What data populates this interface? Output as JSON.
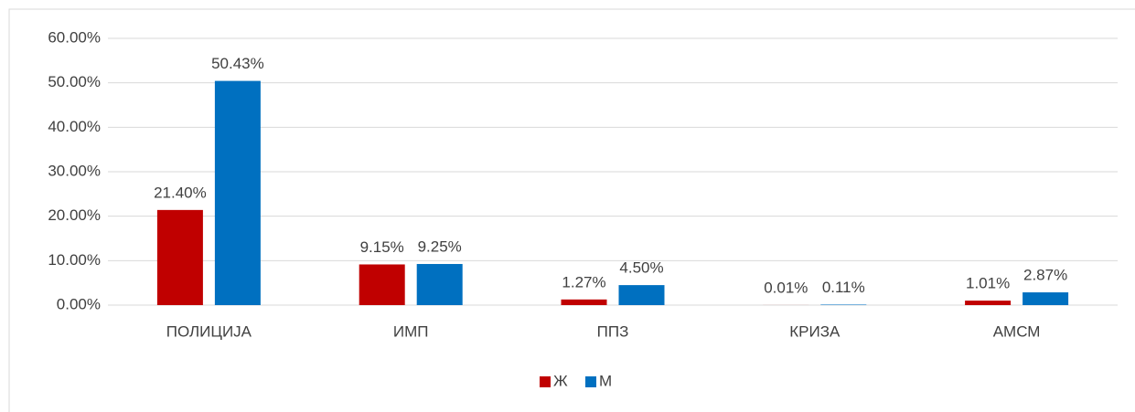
{
  "chart_data": {
    "type": "bar",
    "categories": [
      "ПОЛИЦИЈА",
      "ИМП",
      "ППЗ",
      "КРИЗА",
      "АМСМ"
    ],
    "series": [
      {
        "name": "Ж",
        "color": "#c00000",
        "values": [
          21.4,
          9.15,
          1.27,
          0.01,
          1.01
        ],
        "value_labels": [
          "21.40%",
          "9.15%",
          "1.27%",
          "0.01%",
          "1.01%"
        ]
      },
      {
        "name": "М",
        "color": "#0070c0",
        "values": [
          50.43,
          9.25,
          4.5,
          0.11,
          2.87
        ],
        "value_labels": [
          "50.43%",
          "9.25%",
          "4.50%",
          "0.11%",
          "2.87%"
        ]
      }
    ],
    "ylim": [
      0,
      60
    ],
    "yticks": [
      {
        "value": 0,
        "label": "0.00%"
      },
      {
        "value": 10,
        "label": "10.00%"
      },
      {
        "value": 20,
        "label": "20.00%"
      },
      {
        "value": 30,
        "label": "30.00%"
      },
      {
        "value": 40,
        "label": "40.00%"
      },
      {
        "value": 50,
        "label": "50.00%"
      },
      {
        "value": 60,
        "label": "60.00%"
      }
    ],
    "grid": true,
    "legend": "bottom"
  }
}
